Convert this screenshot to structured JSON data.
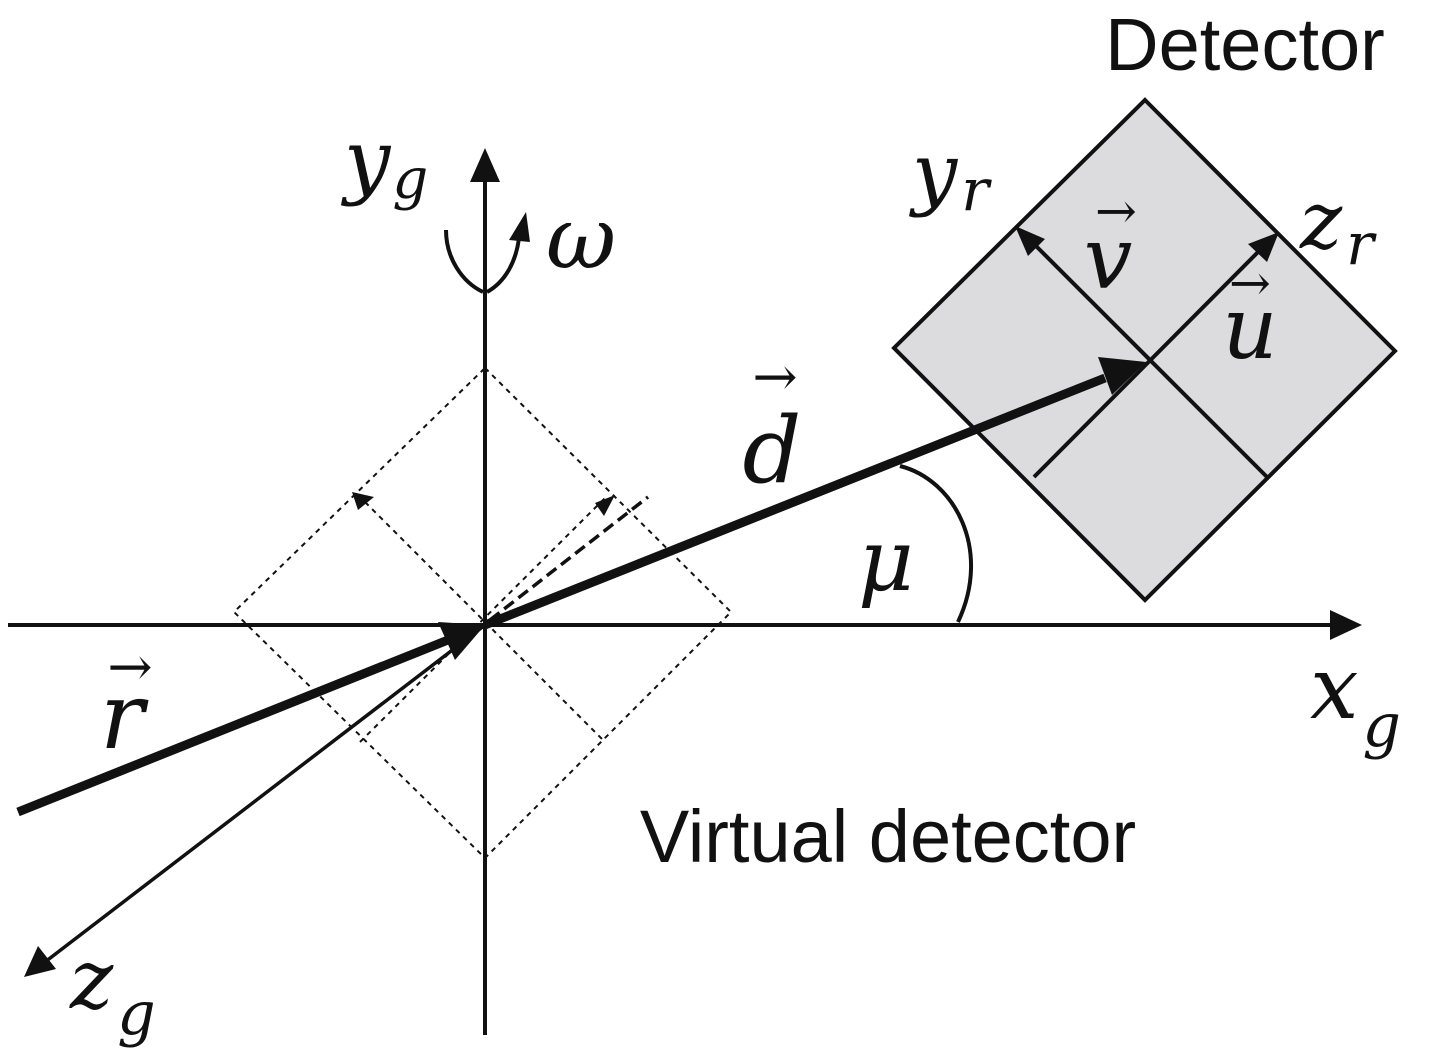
{
  "colors": {
    "ink": "#111111",
    "detector_fill": "#dcdcde",
    "background": "#ffffff"
  },
  "labels": {
    "detector_title": "Detector",
    "virtual_detector_title": "Virtual detector",
    "yg_base": "y",
    "yg_sub": "g",
    "xg_base": "x",
    "xg_sub": "g",
    "zg_base": "z",
    "zg_sub": "g",
    "yr_base": "y",
    "yr_sub": "r",
    "zr_base": "z",
    "zr_sub": "r",
    "omega": "ω",
    "mu": "μ",
    "vec_d": "d",
    "vec_r": "r",
    "vec_u": "u",
    "vec_v": "v",
    "vec_arrow": "→"
  }
}
